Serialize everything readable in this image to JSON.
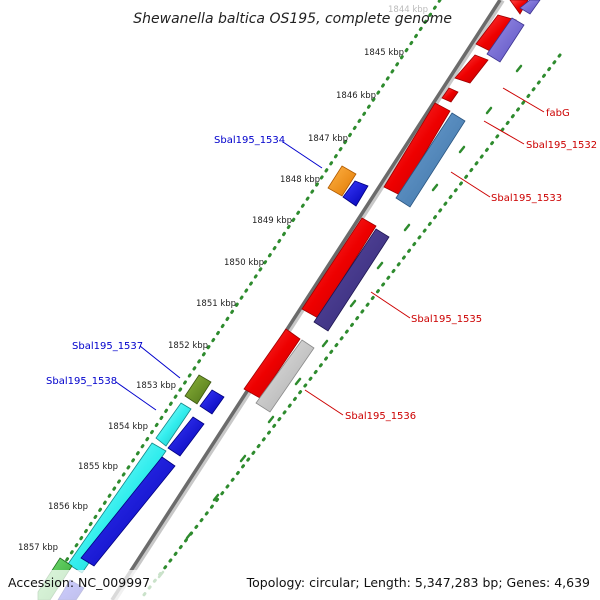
{
  "title": "Shewanella baltica OS195, complete genome",
  "footer": {
    "accession": "Accession: NC_009997",
    "summary": "Topology: circular; Length: 5,347,283 bp; Genes: 4,639"
  },
  "colors": {
    "backbone": "#6b6b6b",
    "ticks": "#2e8b2e",
    "label_blue": "#0000cc",
    "label_red": "#cc0000"
  },
  "kbp_labels": [
    "1844 kbp",
    "1845 kbp",
    "1846 kbp",
    "1847 kbp",
    "1848 kbp",
    "1849 kbp",
    "1850 kbp",
    "1851 kbp",
    "1852 kbp",
    "1853 kbp",
    "1854 kbp",
    "1855 kbp",
    "1856 kbp",
    "1857 kbp"
  ],
  "gene_labels": [
    "fabG",
    "Sbal195_1532",
    "Sbal195_1533",
    "Sbal195_1534",
    "Sbal195_1535",
    "Sbal195_1536",
    "Sbal195_1537",
    "Sbal195_1538"
  ]
}
